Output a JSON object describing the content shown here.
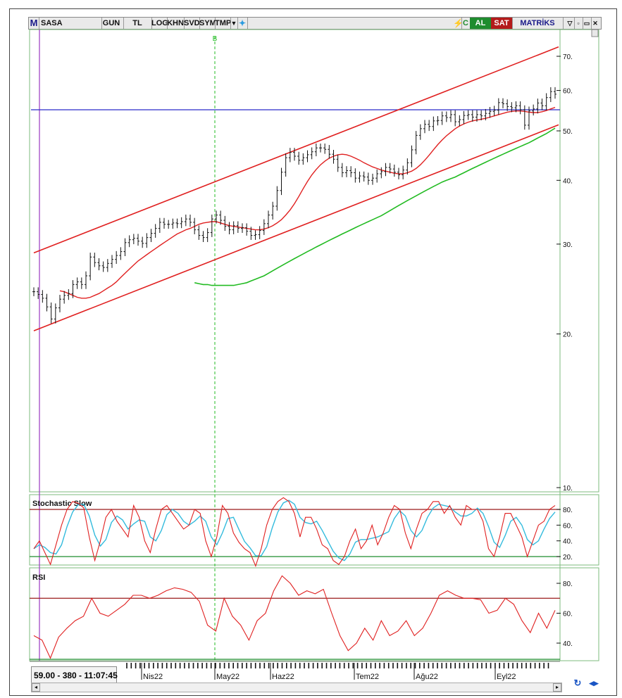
{
  "toolbar": {
    "logo": "M",
    "symbol": "SASA",
    "buttons": [
      "GUN",
      "TL",
      "LOG",
      "KHN",
      "SVD",
      "SYM",
      "TMP"
    ],
    "signal_c": "C",
    "buy_label": "AL",
    "sell_label": "SAT",
    "brand": "MATRİKS",
    "colors": {
      "buy": "#1e8c2e",
      "sell": "#b41a1a",
      "signal_c": "#1e8c2e"
    }
  },
  "status_text": "59.00 - 380 - 11:07:45",
  "chart_data": {
    "type": "line",
    "price_panel": {
      "y_scale": "log",
      "y_ticks": [
        "70.",
        "60.",
        "50.",
        "40.",
        "30.",
        "20.",
        "10."
      ],
      "marker_label": "B",
      "horizontal_line_value": 55,
      "colors": {
        "bars": "#111111",
        "ma_short": "#e02020",
        "ma_long": "#22bb22",
        "channel": "#e02020",
        "hline": "#2b2bc9",
        "marker": "#22bb22"
      },
      "price_close": [
        24.2,
        23.9,
        23.5,
        22.6,
        21.4,
        22.5,
        23.4,
        23.8,
        24.0,
        25.0,
        25.3,
        25.0,
        26.0,
        28.3,
        27.6,
        27.2,
        27.0,
        27.5,
        28.0,
        28.5,
        29.0,
        30.2,
        30.6,
        30.8,
        30.4,
        30.1,
        30.9,
        31.5,
        32.2,
        33.1,
        32.8,
        32.8,
        33.0,
        32.9,
        33.2,
        33.6,
        33.1,
        32.0,
        31.2,
        30.9,
        31.6,
        33.6,
        34.2,
        33.4,
        32.5,
        32.0,
        32.6,
        32.2,
        32.3,
        31.8,
        31.2,
        31.3,
        31.9,
        32.9,
        34.2,
        35.6,
        38.2,
        41.5,
        44.3,
        45.4,
        44.6,
        43.8,
        44.3,
        44.9,
        45.5,
        46.3,
        46.3,
        46.0,
        45.0,
        44.0,
        42.4,
        41.4,
        41.8,
        41.4,
        40.4,
        40.8,
        40.6,
        40.0,
        40.4,
        41.2,
        41.6,
        42.4,
        42.1,
        41.5,
        41.0,
        41.9,
        43.3,
        45.9,
        49.0,
        50.5,
        51.5,
        51.0,
        52.3,
        52.4,
        53.5,
        53.1,
        53.8,
        52.1,
        52.6,
        53.6,
        53.8,
        53.2,
        53.8,
        53.5,
        54.1,
        54.6,
        54.9,
        56.8,
        56.5,
        55.8,
        55.5,
        56.0,
        55.0,
        51.3,
        54.7,
        55.2,
        56.7,
        56.0,
        58.1,
        59.7,
        59.0
      ],
      "ma_short": [
        24.3,
        24.2,
        24.0,
        23.8,
        23.6,
        23.5,
        23.5,
        23.6,
        23.8,
        24.0,
        24.3,
        24.6,
        24.9,
        25.3,
        25.8,
        26.3,
        26.8,
        27.3,
        27.8,
        28.2,
        28.6,
        29.0,
        29.4,
        29.8,
        30.2,
        30.6,
        31.0,
        31.4,
        31.7,
        32.0,
        32.2,
        32.5,
        32.8,
        33.0,
        33.1,
        33.2,
        33.2,
        33.0,
        32.8,
        32.6,
        32.5,
        32.4,
        32.3,
        32.2,
        32.1,
        32.0,
        32.0,
        32.1,
        32.3,
        32.6,
        33.0,
        33.5,
        34.2,
        35.0,
        36.0,
        37.2,
        38.5,
        39.8,
        41.0,
        42.0,
        42.9,
        43.6,
        44.2,
        44.6,
        44.9,
        45.0,
        44.9,
        44.6,
        44.2,
        43.8,
        43.3,
        42.9,
        42.5,
        42.2,
        41.9,
        41.7,
        41.5,
        41.3,
        41.2,
        41.2,
        41.4,
        41.7,
        42.2,
        42.9,
        43.8,
        44.8,
        45.9,
        47.0,
        48.0,
        48.9,
        49.7,
        50.5,
        51.1,
        51.6,
        52.0,
        52.3,
        52.5,
        52.7,
        52.9,
        53.2,
        53.5,
        53.8,
        54.1,
        54.4,
        54.6,
        54.7,
        54.7,
        54.6,
        54.4,
        54.3,
        54.3,
        54.5,
        54.8,
        55.2,
        55.6
      ],
      "ma_long": [
        25.2,
        25.1,
        25.0,
        25.0,
        24.9,
        24.9,
        24.9,
        24.9,
        24.9,
        24.9,
        25.0,
        25.1,
        25.2,
        25.4,
        25.6,
        25.8,
        26.0,
        26.3,
        26.6,
        26.9,
        27.2,
        27.5,
        27.8,
        28.1,
        28.4,
        28.7,
        29.0,
        29.3,
        29.6,
        29.9,
        30.2,
        30.5,
        30.8,
        31.1,
        31.4,
        31.7,
        32.0,
        32.3,
        32.6,
        32.9,
        33.2,
        33.5,
        33.8,
        34.1,
        34.5,
        34.9,
        35.3,
        35.7,
        36.1,
        36.5,
        36.9,
        37.3,
        37.7,
        38.1,
        38.5,
        38.9,
        39.3,
        39.7,
        40.0,
        40.3,
        40.6,
        41.0,
        41.4,
        41.8,
        42.2,
        42.6,
        43.0,
        43.4,
        43.8,
        44.2,
        44.6,
        45.0,
        45.4,
        45.8,
        46.2,
        46.6,
        47.0,
        47.4,
        47.9,
        48.4,
        48.9,
        49.4,
        50.0,
        50.6
      ]
    },
    "stochastic_panel": {
      "title": "Stochastic Slow",
      "y_ticks": [
        "80.",
        "60.",
        "40.",
        "20."
      ],
      "upper_level": 80,
      "lower_level": 20,
      "colors": {
        "k": "#e02020",
        "d": "#33bbdd",
        "upper": "#9a1a1a",
        "lower": "#1e8c2e"
      },
      "k": [
        30,
        40,
        25,
        10,
        35,
        60,
        80,
        90,
        88,
        82,
        45,
        15,
        40,
        70,
        80,
        65,
        55,
        45,
        85,
        70,
        40,
        25,
        55,
        80,
        85,
        75,
        65,
        55,
        60,
        80,
        75,
        40,
        20,
        45,
        85,
        75,
        50,
        38,
        30,
        25,
        8,
        30,
        60,
        80,
        90,
        95,
        90,
        75,
        45,
        70,
        70,
        55,
        35,
        30,
        15,
        10,
        20,
        40,
        55,
        30,
        40,
        60,
        35,
        50,
        70,
        85,
        80,
        50,
        30,
        55,
        75,
        80,
        90,
        90,
        75,
        85,
        70,
        60,
        85,
        80,
        80,
        65,
        30,
        20,
        45,
        75,
        75,
        60,
        45,
        20,
        40,
        60,
        65,
        80,
        85
      ]
    },
    "rsi_panel": {
      "title": "RSI",
      "y_ticks": [
        "80.",
        "60.",
        "40."
      ],
      "upper_level": 70,
      "colors": {
        "line": "#e02020",
        "upper": "#9a1a1a",
        "lower": "#1e8c2e"
      },
      "values": [
        45,
        42,
        30,
        44,
        50,
        55,
        58,
        70,
        60,
        58,
        62,
        66,
        72,
        72,
        70,
        72,
        75,
        77,
        76,
        74,
        68,
        52,
        48,
        70,
        58,
        52,
        42,
        55,
        60,
        75,
        85,
        80,
        72,
        75,
        73,
        76,
        60,
        45,
        35,
        40,
        50,
        42,
        55,
        45,
        48,
        55,
        45,
        50,
        60,
        72,
        75,
        72,
        70,
        70,
        69,
        60,
        62,
        70,
        66,
        55,
        47,
        60,
        50,
        62
      ]
    },
    "x_tick_labels": [
      "Nis22",
      "May22",
      "Haz22",
      "Tem22",
      "Ağu22",
      "Eyl22"
    ]
  }
}
